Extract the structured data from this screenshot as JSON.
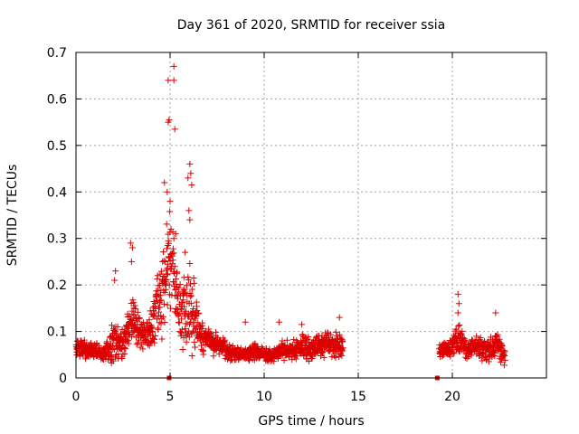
{
  "chart_data": {
    "type": "scatter",
    "title": "Day 361 of 2020, SRMTID for receiver ssia",
    "xlabel": "GPS time / hours",
    "ylabel": "SRMTID / TECUs",
    "xlim": [
      0,
      25
    ],
    "ylim": [
      0,
      0.7
    ],
    "xticks": [
      0,
      5,
      10,
      15,
      20
    ],
    "yticks": [
      0,
      0.1,
      0.2,
      0.3,
      0.4,
      0.5,
      0.6,
      0.7
    ],
    "grid": true,
    "marker": "+",
    "color": "#dd0000",
    "series": [
      {
        "name": "SRMTID",
        "segments": [
          {
            "x_start": 0.0,
            "x_end": 14.2,
            "envelope_hours": [
              0,
              0.5,
              1,
              1.5,
              2,
              2.5,
              3,
              3.5,
              4,
              4.5,
              5,
              5.5,
              6,
              6.5,
              7,
              7.5,
              8,
              8.5,
              9,
              9.5,
              10,
              10.5,
              11,
              11.5,
              12,
              12.5,
              13,
              13.5,
              14
            ],
            "envelope_center": [
              0.07,
              0.06,
              0.06,
              0.05,
              0.08,
              0.07,
              0.13,
              0.09,
              0.1,
              0.18,
              0.28,
              0.14,
              0.16,
              0.1,
              0.08,
              0.07,
              0.06,
              0.05,
              0.05,
              0.06,
              0.05,
              0.05,
              0.06,
              0.06,
              0.07,
              0.06,
              0.07,
              0.07,
              0.07
            ],
            "envelope_spread": [
              0.03,
              0.025,
              0.025,
              0.02,
              0.06,
              0.05,
              0.09,
              0.05,
              0.06,
              0.12,
              0.15,
              0.1,
              0.14,
              0.06,
              0.04,
              0.03,
              0.025,
              0.02,
              0.02,
              0.025,
              0.02,
              0.02,
              0.03,
              0.03,
              0.035,
              0.03,
              0.04,
              0.04,
              0.035
            ]
          },
          {
            "x_start": 19.3,
            "x_end": 22.8,
            "envelope_hours": [
              19.3,
              19.8,
              20.3,
              20.8,
              21.3,
              21.8,
              22.3,
              22.8
            ],
            "envelope_center": [
              0.06,
              0.06,
              0.09,
              0.06,
              0.07,
              0.06,
              0.07,
              0.05
            ],
            "envelope_spread": [
              0.025,
              0.025,
              0.05,
              0.03,
              0.03,
              0.03,
              0.04,
              0.025
            ]
          }
        ],
        "peaks": [
          {
            "x": 4.9,
            "y": 0.64
          },
          {
            "x": 5.2,
            "y": 0.67
          },
          {
            "x": 5.2,
            "y": 0.64
          },
          {
            "x": 4.9,
            "y": 0.55
          },
          {
            "x": 4.95,
            "y": 0.555
          },
          {
            "x": 5.25,
            "y": 0.535
          },
          {
            "x": 4.7,
            "y": 0.42
          },
          {
            "x": 4.85,
            "y": 0.4
          },
          {
            "x": 5.0,
            "y": 0.38
          },
          {
            "x": 6.05,
            "y": 0.46
          },
          {
            "x": 6.1,
            "y": 0.44
          },
          {
            "x": 6.15,
            "y": 0.415
          },
          {
            "x": 5.95,
            "y": 0.43
          },
          {
            "x": 6.0,
            "y": 0.36
          },
          {
            "x": 6.05,
            "y": 0.34
          },
          {
            "x": 5.3,
            "y": 0.31
          },
          {
            "x": 5.2,
            "y": 0.3
          },
          {
            "x": 4.6,
            "y": 0.25
          },
          {
            "x": 2.9,
            "y": 0.29
          },
          {
            "x": 3.0,
            "y": 0.28
          },
          {
            "x": 2.95,
            "y": 0.25
          },
          {
            "x": 2.1,
            "y": 0.23
          },
          {
            "x": 2.05,
            "y": 0.21
          },
          {
            "x": 5.8,
            "y": 0.27
          },
          {
            "x": 20.3,
            "y": 0.18
          },
          {
            "x": 20.35,
            "y": 0.16
          },
          {
            "x": 20.3,
            "y": 0.14
          },
          {
            "x": 22.3,
            "y": 0.14
          },
          {
            "x": 12.0,
            "y": 0.115
          },
          {
            "x": 10.8,
            "y": 0.12
          },
          {
            "x": 9.0,
            "y": 0.12
          },
          {
            "x": 14.0,
            "y": 0.13
          }
        ],
        "zero_points": [
          {
            "x": 4.95,
            "y": 0.0
          },
          {
            "x": 19.2,
            "y": 0.0
          }
        ]
      }
    ]
  }
}
